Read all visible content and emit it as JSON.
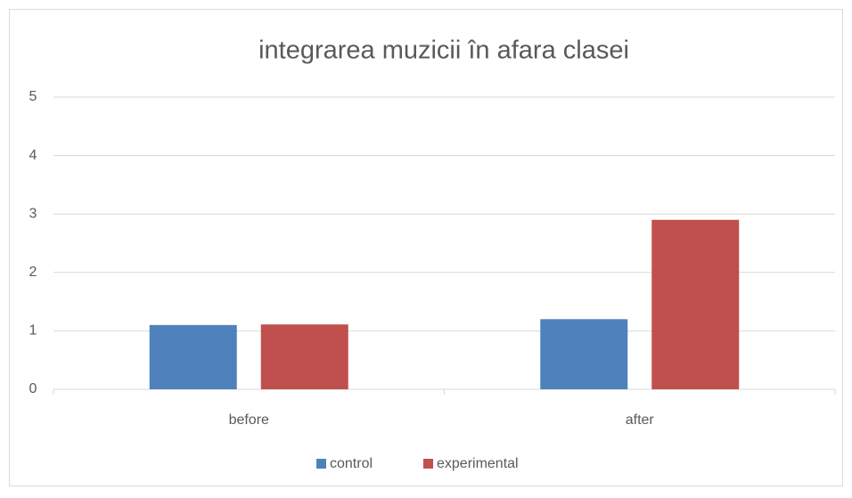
{
  "chart_data": {
    "type": "bar",
    "title": "integrarea muzicii în afara clasei",
    "categories": [
      "before",
      "after"
    ],
    "series": [
      {
        "name": "control",
        "color": "#4f81bd",
        "values": [
          1.1,
          1.2
        ]
      },
      {
        "name": "experimental",
        "color": "#c0504d",
        "values": [
          1.11,
          2.9
        ]
      }
    ],
    "ylim": [
      0,
      5
    ],
    "yticks": [
      0,
      1,
      2,
      3,
      4,
      5
    ],
    "grid": true,
    "legend": "bottom"
  }
}
